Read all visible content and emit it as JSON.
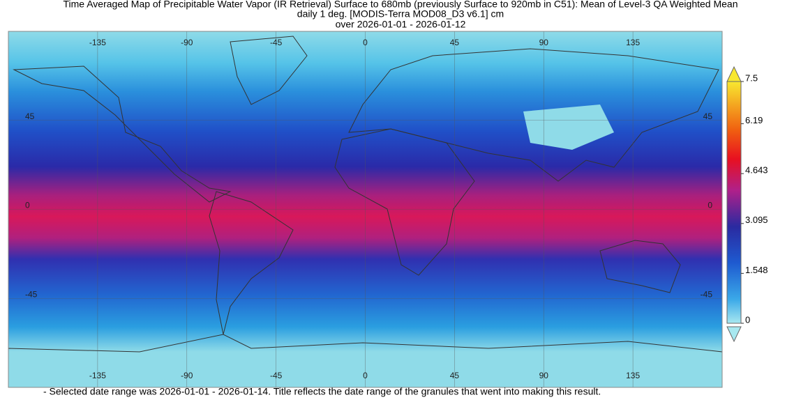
{
  "title": [
    "Time Averaged Map of Precipitable Water Vapor (IR Retrieval) Surface to 680mb (previously Surface to 920mb in C51): Mean of Level-3 QA Weighted Mean",
    "daily 1 deg. [MODIS-Terra MOD08_D3 v6.1] cm",
    "over 2026-01-01 - 2026-01-12"
  ],
  "map": {
    "lonlim": [
      -180,
      180
    ],
    "latlim": [
      -90,
      90
    ],
    "lon_ticks": [
      -135,
      -90,
      -45,
      0,
      45,
      90,
      135
    ],
    "lat_ticks": [
      45,
      0,
      -45
    ]
  },
  "colorbar": {
    "lim": [
      0,
      7.5
    ],
    "ticks": [
      0,
      1.548,
      3.095,
      4.643,
      6.19,
      7.5
    ]
  },
  "caption": "- Selected date range was 2026-01-01 - 2026-01-14. Title reflects the date range of the granules that went into making this result."
}
